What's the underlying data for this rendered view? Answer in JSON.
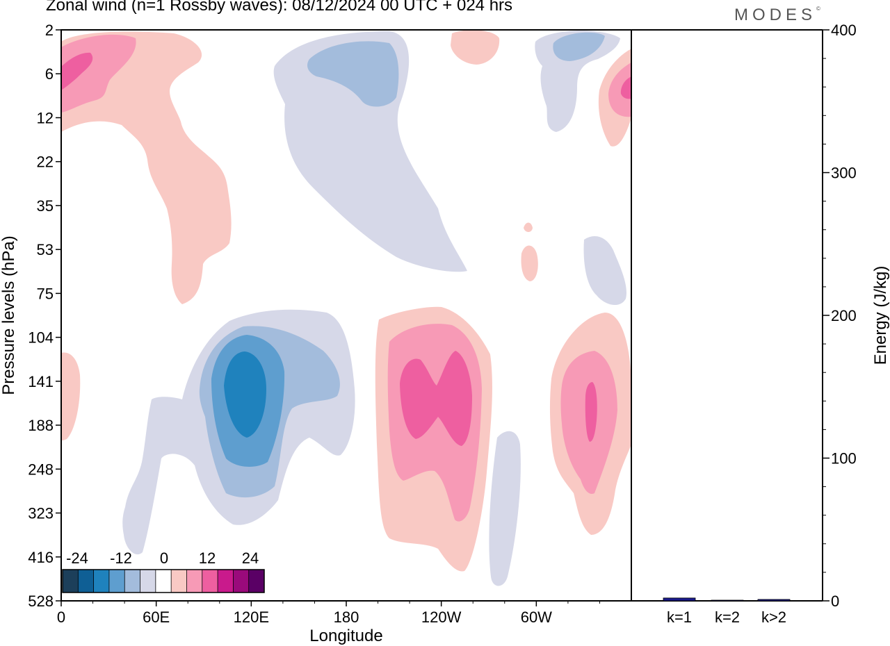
{
  "title": "Zonal wind (n=1 Rossby waves):  08/12/2024  00 UTC  + 024 hrs",
  "logo": {
    "text": "MODES",
    "mark": "©"
  },
  "chart_data": [
    {
      "type": "heatmap",
      "subtype": "filled-contour",
      "variable": "Zonal wind",
      "title": "Zonal wind (n=1 Rossby waves):  08/12/2024  00 UTC  + 024 hrs",
      "xlabel": "Longitude",
      "ylabel": "Pressure levels (hPa)",
      "x_ticks": [
        "0",
        "60E",
        "120E",
        "180",
        "120W",
        "60W"
      ],
      "x_range_deg_east": [
        0,
        360
      ],
      "y_ticks": [
        "2",
        "6",
        "12",
        "22",
        "35",
        "53",
        "75",
        "104",
        "141",
        "188",
        "248",
        "323",
        "416",
        "528"
      ],
      "y_range_hPa": [
        2,
        528
      ],
      "colorbar": {
        "tick_labels": [
          "-24",
          "-12",
          "0",
          "12",
          "24"
        ],
        "levels": [
          -30,
          -26,
          -22,
          -18,
          -14,
          -10,
          -6,
          -2,
          2,
          6,
          10,
          14,
          18,
          22,
          26,
          30
        ],
        "colors": [
          "#1c3f5a",
          "#0f5f95",
          "#1f82bd",
          "#5e9ecf",
          "#a3bcdc",
          "#d6d8e8",
          "#ffffff",
          "#f9c9c4",
          "#f79ab6",
          "#ee5fa0",
          "#c91a8c",
          "#9a0a7b",
          "#5a0065"
        ]
      },
      "features": [
        {
          "sign": "negative",
          "center_lon": 120,
          "center_hPa": 150,
          "peak_ms": -22
        },
        {
          "sign": "positive",
          "center_lon": 240,
          "center_hPa": 150,
          "peak_ms": 16
        },
        {
          "sign": "positive",
          "center_lon": 335,
          "center_hPa": 160,
          "peak_ms": 14
        },
        {
          "sign": "positive",
          "center_lon": 8,
          "center_hPa": 5,
          "peak_ms": 15
        },
        {
          "sign": "negative",
          "center_lon": 185,
          "center_hPa": 6,
          "peak_ms": -12
        },
        {
          "sign": "negative",
          "center_lon": 325,
          "center_hPa": 4,
          "peak_ms": -12
        },
        {
          "sign": "positive",
          "center_lon": 360,
          "center_hPa": 8,
          "peak_ms": 14
        }
      ]
    },
    {
      "type": "bar",
      "categories": [
        "k=1",
        "k=2",
        "k>2"
      ],
      "values": [
        2,
        0.3,
        1
      ],
      "ylabel": "Energy (J/kg)",
      "ylim": [
        0,
        400
      ],
      "y_ticks": [
        "0",
        "100",
        "200",
        "300",
        "400"
      ],
      "bar_color": "#1a1a8c"
    }
  ]
}
